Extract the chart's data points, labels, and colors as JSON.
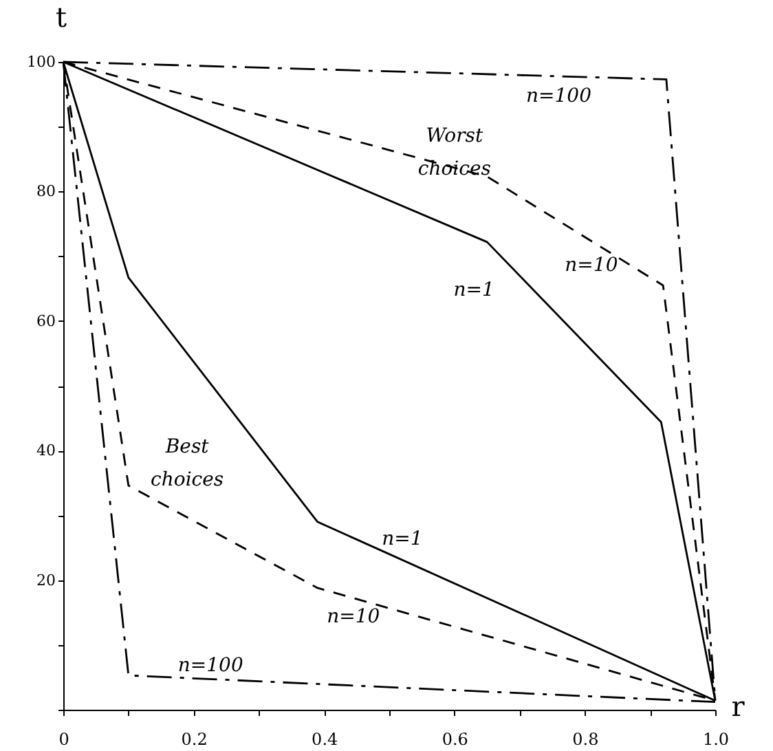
{
  "chart_data": {
    "type": "line",
    "xlabel": "r",
    "ylabel": "t",
    "xlim": [
      0,
      1.0
    ],
    "ylim": [
      0,
      100
    ],
    "xticks": [
      0,
      {
        "value": 0.1,
        "label": null
      },
      0.2,
      {
        "value": 0.3,
        "label": null
      },
      0.4,
      {
        "value": 0.5,
        "label": null
      },
      0.6,
      {
        "value": 0.7,
        "label": null
      },
      0.8,
      {
        "value": 0.9,
        "label": null
      },
      {
        "value": 1.0,
        "label": "1.0"
      }
    ],
    "yticks": [
      {
        "value": 0,
        "label": null
      },
      {
        "value": 10,
        "label": null
      },
      20,
      {
        "value": 30,
        "label": null
      },
      40,
      {
        "value": 50,
        "label": null
      },
      60,
      {
        "value": 70,
        "label": null
      },
      80,
      {
        "value": 90,
        "label": null
      },
      100
    ],
    "grid": false,
    "legend": false,
    "marker": "none",
    "series": [
      {
        "color": "#000000",
        "line_style": "solid",
        "x": [
          0,
          0.65,
          0.917,
          1.0
        ],
        "values": [
          100,
          72.2,
          44.4,
          1.4
        ]
      },
      {
        "color": "#000000",
        "line_style": "dashed",
        "x": [
          0,
          0.65,
          0.92,
          1.0
        ],
        "values": [
          100,
          82.3,
          65.5,
          1.5
        ]
      },
      {
        "color": "#000000",
        "line_style": "dashdot",
        "x": [
          0,
          0.925,
          1.0
        ],
        "values": [
          100,
          97.3,
          1.5
        ]
      },
      {
        "color": "#000000",
        "line_style": "solid",
        "x": [
          0,
          0.1,
          0.39,
          1.0
        ],
        "values": [
          100,
          66.7,
          29,
          1.4
        ]
      },
      {
        "color": "#000000",
        "line_style": "dashed",
        "x": [
          0,
          0.1,
          0.39,
          1.0
        ],
        "values": [
          100,
          34.6,
          18.8,
          1.4
        ]
      },
      {
        "color": "#000000",
        "line_style": "dashdot",
        "x": [
          0,
          0.1,
          1.0
        ],
        "values": [
          100,
          5.3,
          1.2
        ]
      }
    ],
    "annotations": [
      "n=100",
      "Worst choices",
      "n=10",
      "n=1",
      "Best choices",
      "n=1",
      "n=10",
      "n=100"
    ]
  }
}
